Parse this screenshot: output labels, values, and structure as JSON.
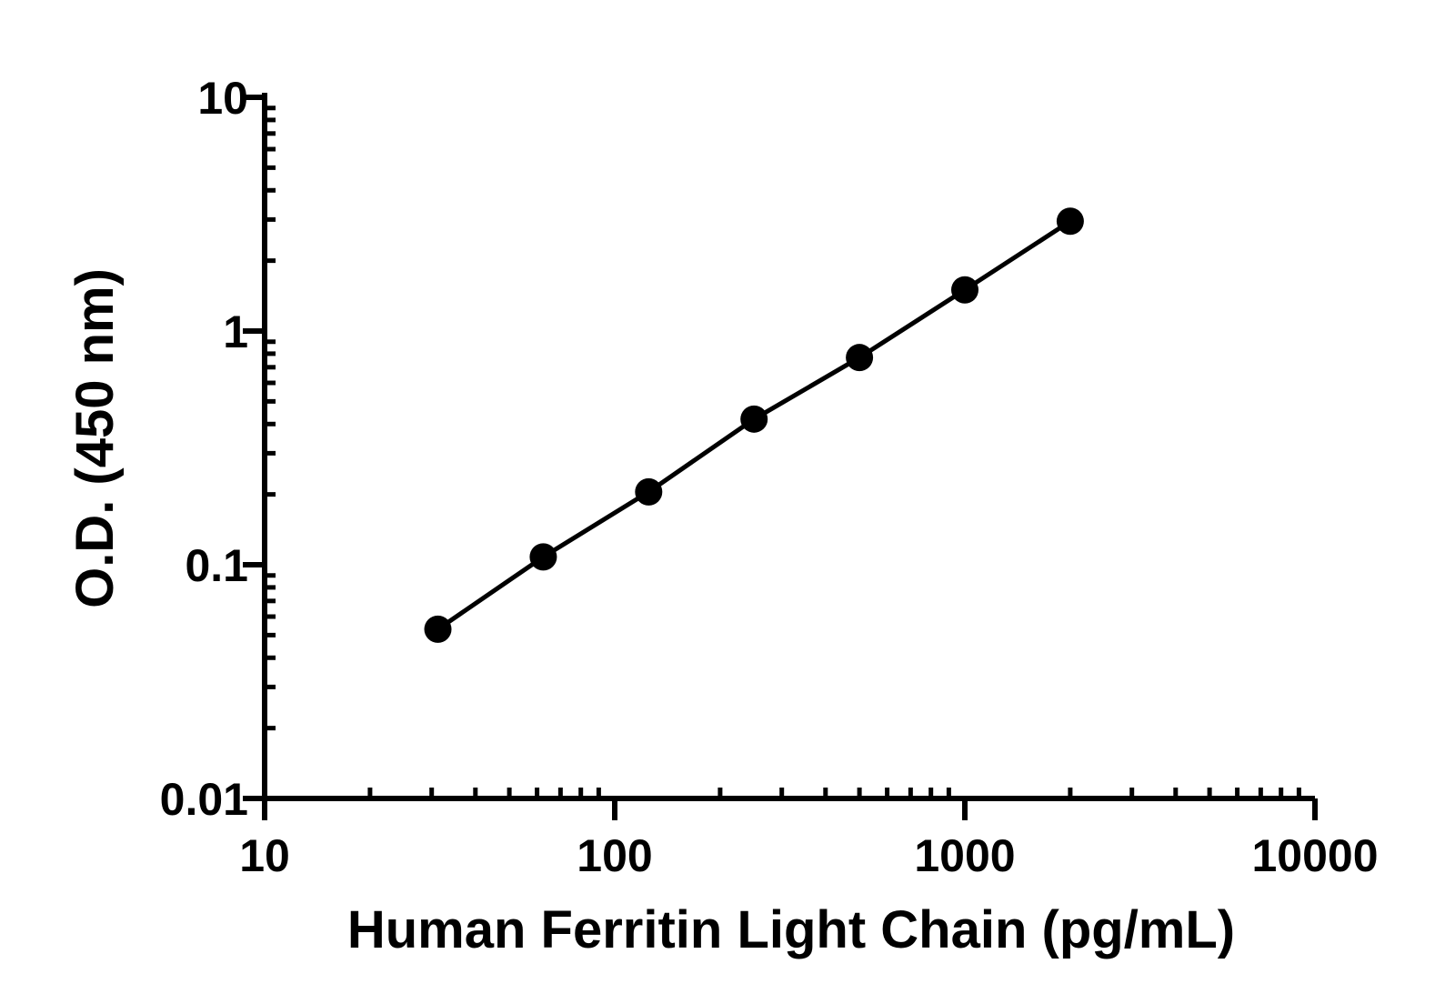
{
  "chart_data": {
    "type": "line",
    "xscale": "log",
    "yscale": "log",
    "xlabel": "Human Ferritin Light Chain (pg/mL)",
    "ylabel": "O.D. (450 nm)",
    "xlim": [
      10,
      10000
    ],
    "ylim": [
      0.01,
      10
    ],
    "x_ticks": [
      "10",
      "100",
      "1000",
      "10000"
    ],
    "y_ticks": [
      "0.01",
      "0.1",
      "1",
      "10"
    ],
    "grid": false,
    "legend": "none",
    "color": "#000000",
    "series": [
      {
        "x": [
          31.25,
          62.5,
          125,
          250,
          500,
          1000,
          2000
        ],
        "y": [
          0.053,
          0.108,
          0.205,
          0.42,
          0.77,
          1.5,
          2.95
        ]
      }
    ]
  }
}
